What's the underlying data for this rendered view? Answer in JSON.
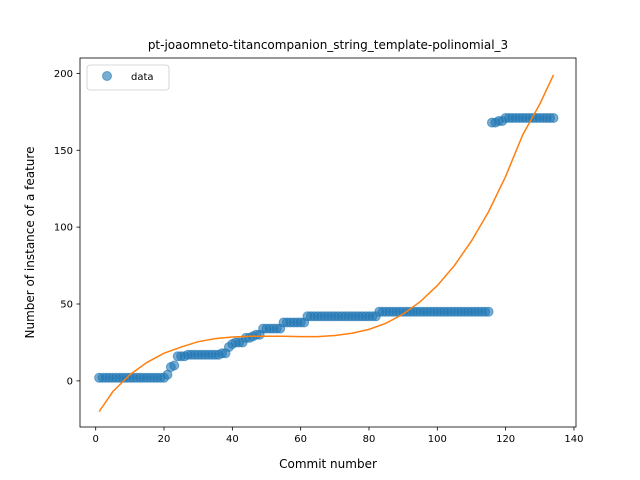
{
  "chart_data": {
    "type": "scatter",
    "title": "pt-joaomneto-titancompanion_string_template-polinomial_3",
    "xlabel": "Commit number",
    "ylabel": "Number of instance of a feature",
    "xlim": [
      -4.6,
      140.6
    ],
    "ylim": [
      -30,
      210
    ],
    "xticks": [
      0,
      20,
      40,
      60,
      80,
      100,
      120,
      140
    ],
    "yticks": [
      0,
      50,
      100,
      150,
      200
    ],
    "legend": {
      "position": "top-left",
      "entries": [
        "data"
      ]
    },
    "grid": false,
    "colors": {
      "data": "#1f77b4",
      "fit": "#ff7f0e"
    },
    "series": [
      {
        "name": "data",
        "kind": "scatter",
        "points": [
          [
            1,
            2
          ],
          [
            2,
            2
          ],
          [
            3,
            2
          ],
          [
            4,
            2
          ],
          [
            5,
            2
          ],
          [
            6,
            2
          ],
          [
            7,
            2
          ],
          [
            8,
            2
          ],
          [
            9,
            2
          ],
          [
            10,
            2
          ],
          [
            11,
            2
          ],
          [
            12,
            2
          ],
          [
            13,
            2
          ],
          [
            14,
            2
          ],
          [
            15,
            2
          ],
          [
            16,
            2
          ],
          [
            17,
            2
          ],
          [
            18,
            2
          ],
          [
            19,
            2
          ],
          [
            20,
            2
          ],
          [
            21,
            4
          ],
          [
            22,
            9
          ],
          [
            23,
            10
          ],
          [
            24,
            16
          ],
          [
            25,
            16
          ],
          [
            26,
            16
          ],
          [
            27,
            17
          ],
          [
            28,
            17
          ],
          [
            29,
            17
          ],
          [
            30,
            17
          ],
          [
            31,
            17
          ],
          [
            32,
            17
          ],
          [
            33,
            17
          ],
          [
            34,
            17
          ],
          [
            35,
            17
          ],
          [
            36,
            17
          ],
          [
            37,
            18
          ],
          [
            38,
            18
          ],
          [
            39,
            22
          ],
          [
            40,
            24
          ],
          [
            41,
            25
          ],
          [
            42,
            25
          ],
          [
            43,
            25
          ],
          [
            44,
            28
          ],
          [
            45,
            28
          ],
          [
            46,
            29
          ],
          [
            47,
            30
          ],
          [
            48,
            30
          ],
          [
            49,
            34
          ],
          [
            50,
            34
          ],
          [
            51,
            34
          ],
          [
            52,
            34
          ],
          [
            53,
            34
          ],
          [
            54,
            34
          ],
          [
            55,
            38
          ],
          [
            56,
            38
          ],
          [
            57,
            38
          ],
          [
            58,
            38
          ],
          [
            59,
            38
          ],
          [
            60,
            38
          ],
          [
            61,
            38
          ],
          [
            62,
            42
          ],
          [
            63,
            42
          ],
          [
            64,
            42
          ],
          [
            65,
            42
          ],
          [
            66,
            42
          ],
          [
            67,
            42
          ],
          [
            68,
            42
          ],
          [
            69,
            42
          ],
          [
            70,
            42
          ],
          [
            71,
            42
          ],
          [
            72,
            42
          ],
          [
            73,
            42
          ],
          [
            74,
            42
          ],
          [
            75,
            42
          ],
          [
            76,
            42
          ],
          [
            77,
            42
          ],
          [
            78,
            42
          ],
          [
            79,
            42
          ],
          [
            80,
            42
          ],
          [
            81,
            42
          ],
          [
            82,
            42
          ],
          [
            83,
            45
          ],
          [
            84,
            45
          ],
          [
            85,
            45
          ],
          [
            86,
            45
          ],
          [
            87,
            45
          ],
          [
            88,
            45
          ],
          [
            89,
            45
          ],
          [
            90,
            45
          ],
          [
            91,
            45
          ],
          [
            92,
            45
          ],
          [
            93,
            45
          ],
          [
            94,
            45
          ],
          [
            95,
            45
          ],
          [
            96,
            45
          ],
          [
            97,
            45
          ],
          [
            98,
            45
          ],
          [
            99,
            45
          ],
          [
            100,
            45
          ],
          [
            101,
            45
          ],
          [
            102,
            45
          ],
          [
            103,
            45
          ],
          [
            104,
            45
          ],
          [
            105,
            45
          ],
          [
            106,
            45
          ],
          [
            107,
            45
          ],
          [
            108,
            45
          ],
          [
            109,
            45
          ],
          [
            110,
            45
          ],
          [
            111,
            45
          ],
          [
            112,
            45
          ],
          [
            113,
            45
          ],
          [
            114,
            45
          ],
          [
            115,
            45
          ],
          [
            116,
            168
          ],
          [
            117,
            168
          ],
          [
            118,
            169
          ],
          [
            119,
            169
          ],
          [
            120,
            171
          ],
          [
            121,
            171
          ],
          [
            122,
            171
          ],
          [
            123,
            171
          ],
          [
            124,
            171
          ],
          [
            125,
            171
          ],
          [
            126,
            171
          ],
          [
            127,
            171
          ],
          [
            128,
            171
          ],
          [
            129,
            171
          ],
          [
            130,
            171
          ],
          [
            131,
            171
          ],
          [
            132,
            171
          ],
          [
            133,
            171
          ],
          [
            134,
            171
          ]
        ]
      },
      {
        "kind": "line",
        "points": [
          [
            1,
            -20
          ],
          [
            5,
            -7
          ],
          [
            10,
            4
          ],
          [
            15,
            12
          ],
          [
            20,
            18
          ],
          [
            25,
            22
          ],
          [
            30,
            25.5
          ],
          [
            35,
            27.5
          ],
          [
            40,
            28.5
          ],
          [
            45,
            29
          ],
          [
            50,
            29
          ],
          [
            55,
            29
          ],
          [
            60,
            28.8
          ],
          [
            65,
            28.8
          ],
          [
            70,
            29.5
          ],
          [
            75,
            31
          ],
          [
            80,
            33.5
          ],
          [
            85,
            37.5
          ],
          [
            90,
            43.5
          ],
          [
            95,
            51.5
          ],
          [
            100,
            62
          ],
          [
            105,
            75
          ],
          [
            110,
            91
          ],
          [
            115,
            110
          ],
          [
            120,
            133
          ],
          [
            125,
            160
          ],
          [
            130,
            180
          ],
          [
            134,
            199
          ]
        ]
      }
    ]
  }
}
